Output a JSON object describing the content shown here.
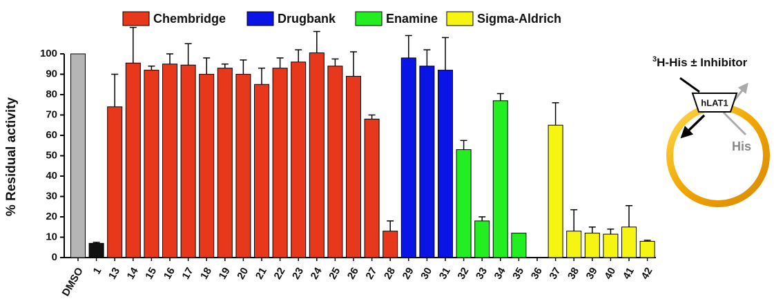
{
  "chart_data": {
    "type": "bar",
    "y_label": "% Residual activity",
    "categories": [
      "DMSO",
      "1",
      "13",
      "14",
      "15",
      "16",
      "17",
      "18",
      "19",
      "20",
      "21",
      "22",
      "23",
      "24",
      "25",
      "26",
      "27",
      "28",
      "29",
      "30",
      "31",
      "32",
      "33",
      "34",
      "35",
      "36",
      "37",
      "38",
      "39",
      "40",
      "41",
      "42"
    ],
    "values": [
      100,
      7,
      74,
      95.5,
      92,
      95,
      94.5,
      90,
      93,
      90,
      85,
      93,
      96,
      100.5,
      94,
      89,
      68,
      13,
      98,
      94,
      92,
      53,
      18,
      77,
      12,
      0,
      65,
      13,
      12,
      11.5,
      15,
      8
    ],
    "errors": [
      null,
      0.5,
      16,
      17.5,
      2,
      5,
      10.5,
      8,
      2,
      7,
      8,
      5,
      6,
      10.5,
      3.5,
      12,
      2,
      5,
      11,
      8,
      16,
      4.5,
      2,
      3.5,
      null,
      null,
      11,
      10.5,
      3,
      2.5,
      10.5,
      0.5
    ],
    "colors": [
      "#b5b5b5",
      "#111111",
      "#e8381c",
      "#e8381c",
      "#e8381c",
      "#e8381c",
      "#e8381c",
      "#e8381c",
      "#e8381c",
      "#e8381c",
      "#e8381c",
      "#e8381c",
      "#e8381c",
      "#e8381c",
      "#e8381c",
      "#e8381c",
      "#e8381c",
      "#e8381c",
      "#0a14e6",
      "#0a14e6",
      "#0a14e6",
      "#22ee22",
      "#22ee22",
      "#22ee22",
      "#22ee22",
      "#22ee22",
      "#f5f511",
      "#f5f511",
      "#f5f511",
      "#f5f511",
      "#f5f511",
      "#f5f511"
    ],
    "legend": [
      {
        "name": "Chembridge",
        "color": "#e8381c"
      },
      {
        "name": "Drugbank",
        "color": "#0a14e6"
      },
      {
        "name": "Enamine",
        "color": "#22ee22"
      },
      {
        "name": "Sigma-Aldrich",
        "color": "#f5f511"
      }
    ],
    "ylim": [
      0,
      100
    ],
    "yticks": [
      0,
      10,
      20,
      30,
      40,
      50,
      60,
      70,
      80,
      90,
      100
    ]
  },
  "diagram": {
    "label_superscript": "3",
    "label": "H-His ± Inhibitor",
    "transporter": "hLAT1",
    "substrate": "His"
  }
}
